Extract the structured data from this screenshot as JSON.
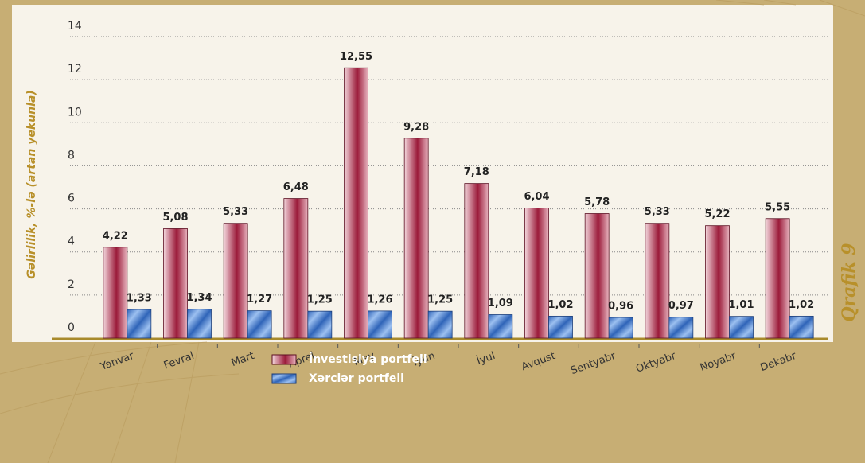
{
  "chart_data": {
    "type": "bar",
    "y_label": "Gəlirlilik, %-lə (artan yekunla)",
    "figure_label": "Qrafik 9",
    "categories": [
      "Yanvar",
      "Fevral",
      "Mart",
      "Aprel",
      "May",
      "İyun",
      "İyul",
      "Avqust",
      "Sentyabr",
      "Oktyabr",
      "Noyabr",
      "Dekabr"
    ],
    "series": [
      {
        "name": "İnvestisiya portfeli",
        "color": "#9b1b3a",
        "values": [
          4.22,
          5.08,
          5.33,
          6.48,
          12.55,
          9.28,
          7.18,
          6.04,
          5.78,
          5.33,
          5.22,
          5.55
        ],
        "value_labels": [
          "4,22",
          "5,08",
          "5,33",
          "6,48",
          "12,55",
          "9,28",
          "7,18",
          "6,04",
          "5,78",
          "5,33",
          "5,22",
          "5,55"
        ]
      },
      {
        "name": "Xərclər portfeli",
        "color": "#2f64b8",
        "values": [
          1.33,
          1.34,
          1.27,
          1.25,
          1.26,
          1.25,
          1.09,
          1.02,
          0.96,
          0.97,
          1.01,
          1.02
        ],
        "value_labels": [
          "1,33",
          "1,34",
          "1,27",
          "1,25",
          "1,26",
          "1,25",
          "1,09",
          "1,02",
          "0,96",
          "0,97",
          "1,01",
          "1,02"
        ]
      }
    ],
    "ylim": [
      0,
      14
    ],
    "yticks": [
      0,
      2,
      4,
      6,
      8,
      10,
      12,
      14
    ],
    "grid": true,
    "legend": "bottom"
  }
}
